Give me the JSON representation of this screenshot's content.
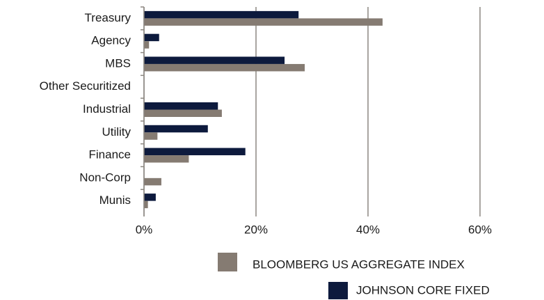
{
  "chart_data": {
    "type": "bar",
    "orientation": "horizontal",
    "categories": [
      "Treasury",
      "Agency",
      "MBS",
      "Other Securitized",
      "Industrial",
      "Utility",
      "Finance",
      "Non-Corp",
      "Munis"
    ],
    "series": [
      {
        "name": "BLOOMBERG US AGGREGATE INDEX",
        "color": "#857b72",
        "values": [
          42.6,
          0.9,
          28.7,
          0,
          13.9,
          2.4,
          8.0,
          3.1,
          0.7
        ]
      },
      {
        "name": "JOHNSON CORE FIXED",
        "color": "#0d1a3d",
        "values": [
          27.6,
          2.7,
          25.1,
          0,
          13.2,
          11.4,
          18.1,
          0,
          2.1
        ]
      }
    ],
    "xlim": [
      0,
      60
    ],
    "xticks": [
      {
        "value": 0,
        "label": "0%"
      },
      {
        "value": 20,
        "label": "20%"
      },
      {
        "value": 40,
        "label": "40%"
      },
      {
        "value": 60,
        "label": "60%"
      }
    ],
    "grid": true
  }
}
